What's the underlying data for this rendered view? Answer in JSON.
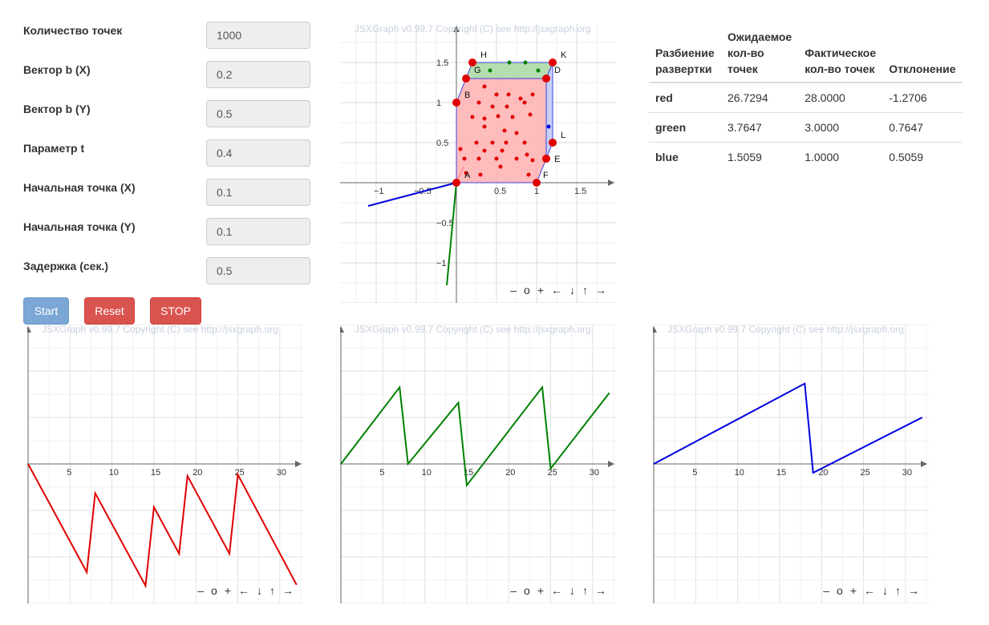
{
  "form": {
    "fields": [
      {
        "label": "Количество точек",
        "value": "1000"
      },
      {
        "label": "Вектор b (X)",
        "value": "0.2"
      },
      {
        "label": "Вектор b (Y)",
        "value": "0.5"
      },
      {
        "label": "Параметр t",
        "value": "0.4"
      },
      {
        "label": "Начальная точка (X)",
        "value": "0.1"
      },
      {
        "label": "Начальная точка (Y)",
        "value": "0.1"
      },
      {
        "label": "Задержка (сек.)",
        "value": "0.5"
      }
    ],
    "start_label": "Start",
    "reset_label": "Reset",
    "stop_label": "STOP"
  },
  "copyright": "JSXGraph v0.99.7 Copyright (C) see http://jsxgraph.org",
  "nav": {
    "minus": "–",
    "zoom_reset": "o",
    "plus": "+",
    "left": "←",
    "down": "↓",
    "up": "↑",
    "right": "→"
  },
  "table": {
    "headers": [
      "Разбиение развертки",
      "Ожидаемое кол-во точек",
      "Фактическое кол-во точек",
      "Отклонение"
    ],
    "rows": [
      {
        "label": "red",
        "expected": "26.7294",
        "actual": "28.0000",
        "deviation": "-1.2706",
        "color": "#e00000"
      },
      {
        "label": "green",
        "expected": "3.7647",
        "actual": "3.0000",
        "deviation": "0.7647",
        "color": "#008000"
      },
      {
        "label": "blue",
        "expected": "1.5059",
        "actual": "1.0000",
        "deviation": "0.5059",
        "color": "#0000c0"
      }
    ]
  },
  "main_board": {
    "x_ticks": [
      "−1",
      "−0.5",
      "0.5",
      "1",
      "1.5"
    ],
    "y_ticks": [
      "1.5",
      "1",
      "0.5",
      "−0.5",
      "−1"
    ],
    "point_labels": [
      "H",
      "K",
      "G",
      "D",
      "B",
      "L",
      "E",
      "F",
      "A"
    ],
    "colors": {
      "red_fill": "#ffb0b0",
      "green_fill": "#b5ddb0",
      "blue": "#0000e0",
      "red": "#e00000",
      "green": "#008000"
    }
  },
  "chart_data": [
    {
      "type": "line",
      "title": "",
      "x_ticks": [
        5,
        10,
        15,
        20,
        25,
        30
      ],
      "xlim": [
        -0.3,
        33.5
      ],
      "series": [
        {
          "color": "#e00000",
          "x": [
            0,
            7,
            8,
            14,
            15,
            18,
            19,
            24,
            25,
            32
          ],
          "y": [
            0,
            -2.33,
            -0.63,
            -2.62,
            -0.93,
            -1.93,
            -0.26,
            -1.93,
            -0.23,
            -2.6
          ]
        }
      ]
    },
    {
      "type": "line",
      "title": "",
      "x_ticks": [
        5,
        10,
        15,
        20,
        25,
        30
      ],
      "xlim": [
        -0.3,
        33.5
      ],
      "series": [
        {
          "color": "#008000",
          "x": [
            0,
            7,
            8,
            14,
            15,
            24,
            25,
            32
          ],
          "y": [
            0,
            1.65,
            0,
            1.32,
            -0.46,
            1.65,
            -0.1,
            1.53
          ]
        }
      ]
    },
    {
      "type": "line",
      "title": "",
      "x_ticks": [
        5,
        10,
        15,
        20,
        25,
        30
      ],
      "xlim": [
        -0.3,
        33.5
      ],
      "series": [
        {
          "color": "#0000e0",
          "x": [
            0,
            18,
            19,
            32
          ],
          "y": [
            0,
            1.73,
            -0.19,
            1
          ]
        }
      ]
    }
  ]
}
